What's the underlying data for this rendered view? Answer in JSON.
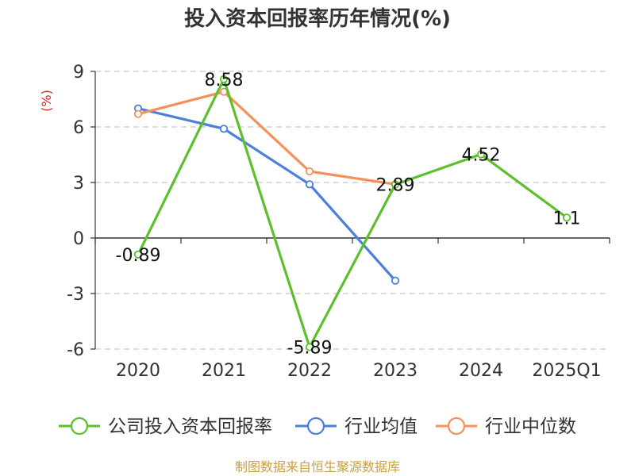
{
  "chart_data": {
    "type": "line",
    "title": "投入资本回报率历年情况(%)",
    "ylabel": "(%)",
    "categories": [
      "2020",
      "2021",
      "2022",
      "2023",
      "2024",
      "2025Q1"
    ],
    "ylim": [
      -6,
      9
    ],
    "yticks": [
      9,
      6,
      3,
      0,
      -3,
      -6
    ],
    "grid": true,
    "legend_position": "bottom",
    "series": [
      {
        "name": "公司投入资本回报率",
        "color": "#5cc02c",
        "values": [
          -0.89,
          8.58,
          -5.89,
          2.89,
          4.52,
          1.1
        ],
        "labels": [
          "-0.89",
          "8.58",
          "-5.89",
          "2.89",
          "4.52",
          "1.1"
        ]
      },
      {
        "name": "行业均值",
        "color": "#4a7fdc",
        "values": [
          7.0,
          5.9,
          2.9,
          -2.3,
          null,
          null
        ]
      },
      {
        "name": "行业中位数",
        "color": "#f4915a",
        "values": [
          6.7,
          7.9,
          3.6,
          2.9,
          null,
          null
        ]
      }
    ]
  },
  "source": "制图数据来自恒生聚源数据库"
}
